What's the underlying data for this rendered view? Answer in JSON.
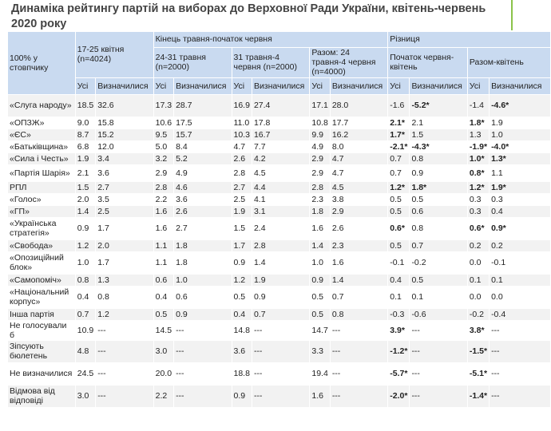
{
  "title": "Динаміка рейтингу партій на виборах до Верховної Ради України, квітень-червень 2020 року",
  "header": {
    "corner": "100% у стовпчику",
    "apr": "17-25 квітня (n=4024)",
    "may_june": "Кінець травня-початок червня",
    "sub1": "24-31 травня (n=2000)",
    "sub2": "31 травня-4 червня (n=2000)",
    "sub3": "Разом: 24 травня-4 червня (n=4000)",
    "diff": "Різниця",
    "diff1": "Початок червня-квітень",
    "diff2": "Разом-квітень",
    "all": "Усі",
    "decided": "Визначилися"
  },
  "rows": [
    {
      "label": "«Слуга народу»",
      "v": [
        "18.5",
        "32.6",
        "17.3",
        "28.7",
        "16.9",
        "27.4",
        "17.1",
        "28.0",
        "-1.6",
        "-5.2*",
        "-1.4",
        "-4.6*"
      ]
    },
    {
      "label": "«ОПЗЖ»",
      "v": [
        "9.0",
        "15.8",
        "10.6",
        "17.5",
        "11.0",
        "17.8",
        "10.8",
        "17.7",
        "2.1*",
        "2.1",
        "1.8*",
        "1.9"
      ]
    },
    {
      "label": "«ЄС»",
      "v": [
        "8.7",
        "15.2",
        "9.5",
        "15.7",
        "10.3",
        "16.7",
        "9.9",
        "16.2",
        "1.7*",
        "1.5",
        "1.3",
        "1.0"
      ]
    },
    {
      "label": "«Батьківщина»",
      "v": [
        "6.8",
        "12.0",
        "5.0",
        "8.4",
        "4.7",
        "7.7",
        "4.9",
        "8.0",
        "-2.1*",
        "-4.3*",
        "-1.9*",
        "-4.0*"
      ]
    },
    {
      "label": "«Сила і Честь»",
      "v": [
        "1.9",
        "3.4",
        "3.2",
        "5.2",
        "2.6",
        "4.2",
        "2.9",
        "4.7",
        "0.7",
        "0.8",
        "1.0*",
        "1.3*"
      ]
    },
    {
      "label": "«Партія Шарія»",
      "v": [
        "2.1",
        "3.6",
        "2.9",
        "4.9",
        "2.8",
        "4.5",
        "2.9",
        "4.7",
        "0.7",
        "0.9",
        "0.8*",
        "1.1"
      ]
    },
    {
      "label": "РПЛ",
      "v": [
        "1.5",
        "2.7",
        "2.8",
        "4.6",
        "2.7",
        "4.4",
        "2.8",
        "4.5",
        "1.2*",
        "1.8*",
        "1.2*",
        "1.9*"
      ]
    },
    {
      "label": "«Голос»",
      "v": [
        "2.0",
        "3.5",
        "2.2",
        "3.6",
        "2.5",
        "4.1",
        "2.3",
        "3.8",
        "0.5",
        "0.5",
        "0.3",
        "0.3"
      ]
    },
    {
      "label": "«ГП»",
      "v": [
        "1.4",
        "2.5",
        "1.6",
        "2.6",
        "1.9",
        "3.1",
        "1.8",
        "2.9",
        "0.5",
        "0.6",
        "0.3",
        "0.4"
      ]
    },
    {
      "label": "«Українська стратегія»",
      "v": [
        "0.9",
        "1.7",
        "1.6",
        "2.7",
        "1.5",
        "2.4",
        "1.6",
        "2.6",
        "0.6*",
        "0.8",
        "0.6*",
        "0.9*"
      ]
    },
    {
      "label": "«Свобода»",
      "v": [
        "1.2",
        "2.0",
        "1.1",
        "1.8",
        "1.7",
        "2.8",
        "1.4",
        "2.3",
        "0.5",
        "0.7",
        "0.2",
        "0.2"
      ]
    },
    {
      "label": "«Опозиційний блок»",
      "v": [
        "1.0",
        "1.7",
        "1.1",
        "1.8",
        "0.9",
        "1.4",
        "1.0",
        "1.6",
        "-0.1",
        "-0.2",
        "0.0",
        "-0.1"
      ]
    },
    {
      "label": "«Самопоміч»",
      "v": [
        "0.8",
        "1.3",
        "0.6",
        "1.0",
        "1.2",
        "1.9",
        "0.9",
        "1.4",
        "0.4",
        "0.5",
        "0.1",
        "0.1"
      ]
    },
    {
      "label": "«Національний корпус»",
      "v": [
        "0.4",
        "0.8",
        "0.4",
        "0.6",
        "0.5",
        "0.9",
        "0.5",
        "0.7",
        "0.1",
        "0.1",
        "0.0",
        "0.0"
      ]
    },
    {
      "label": "Інша партія",
      "v": [
        "0.7",
        "1.2",
        "0.5",
        "0.9",
        "0.4",
        "0.7",
        "0.5",
        "0.8",
        "-0.3",
        "-0.6",
        "-0.2",
        "-0.4"
      ]
    },
    {
      "label": "Не голосували б",
      "v": [
        "10.9",
        "---",
        "14.5",
        "---",
        "14.8",
        "---",
        "14.7",
        "---",
        "3.9*",
        "---",
        "3.8*",
        "---"
      ]
    },
    {
      "label": "Зіпсують бюлетень",
      "v": [
        "4.8",
        "---",
        "3.0",
        "---",
        "3.6",
        "---",
        "3.3",
        "---",
        "-1.2*",
        "---",
        "-1.5*",
        "---"
      ]
    },
    {
      "label": "Не визначилися",
      "v": [
        "24.5",
        "---",
        "20.0",
        "---",
        "18.8",
        "---",
        "19.4",
        "---",
        "-5.7*",
        "---",
        "-5.1*",
        "---"
      ]
    },
    {
      "label": "Відмова від відповіді",
      "v": [
        "3.0",
        "---",
        "2.2",
        "---",
        "0.9",
        "---",
        "1.6",
        "---",
        "-2.0*",
        "---",
        "-1.4*",
        "---"
      ]
    }
  ]
}
